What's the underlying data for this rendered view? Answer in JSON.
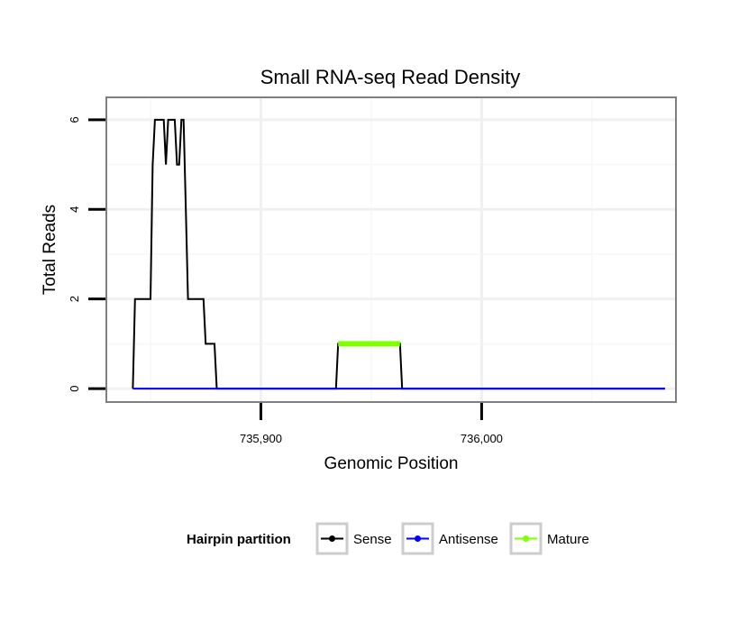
{
  "chart_data": {
    "type": "line",
    "title": "Small RNA-seq Read Density",
    "xlabel": "Genomic Position",
    "ylabel": "Total Reads",
    "xlim": [
      735830,
      736088
    ],
    "ylim": [
      -0.3,
      6.5
    ],
    "x_ticks": [
      {
        "value": 735900,
        "label": "735,900"
      },
      {
        "value": 736000,
        "label": "736,000"
      }
    ],
    "y_ticks": [
      {
        "value": 0,
        "label": "0"
      },
      {
        "value": 2,
        "label": "2"
      },
      {
        "value": 4,
        "label": "4"
      },
      {
        "value": 6,
        "label": "6"
      }
    ],
    "grid": true,
    "legend": {
      "title": "Hairpin partition",
      "position": "bottom"
    },
    "series": [
      {
        "name": "Sense",
        "color": "#000000",
        "x": [
          735842,
          735843,
          735844,
          735850,
          735851,
          735852,
          735853,
          735856,
          735857,
          735858,
          735859,
          735861,
          735862,
          735863,
          735864,
          735865,
          735866,
          735867,
          735868,
          735874,
          735875,
          735876,
          735877,
          735879,
          735880,
          735934,
          735935,
          735963,
          735964,
          736083
        ],
        "values": [
          0,
          2,
          2,
          2,
          5,
          6,
          6,
          6,
          5,
          6,
          6,
          6,
          5,
          5,
          6,
          6,
          4,
          2,
          2,
          2,
          1,
          1,
          1,
          1,
          0,
          0,
          1,
          1,
          0,
          0
        ]
      },
      {
        "name": "Antisense",
        "color": "#0000ff",
        "x": [
          735842,
          736083
        ],
        "values": [
          0,
          0
        ]
      },
      {
        "name": "Mature",
        "color": "#7fff00",
        "x": [
          735935,
          735963
        ],
        "values": [
          1,
          1
        ]
      }
    ]
  }
}
